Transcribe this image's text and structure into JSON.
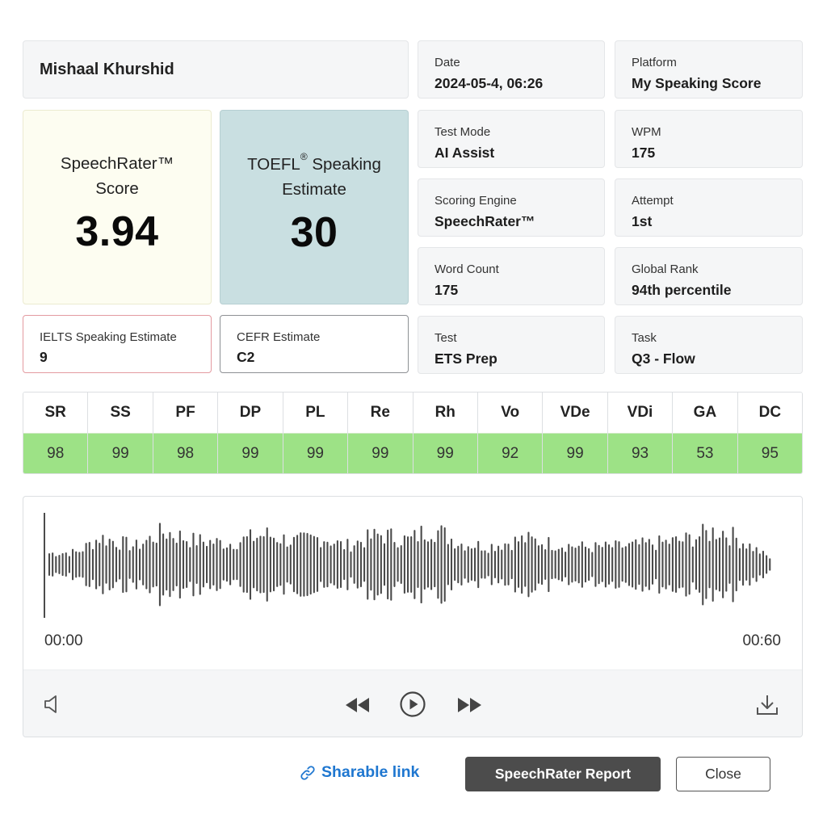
{
  "student": {
    "name": "Mishaal Khurshid"
  },
  "info": {
    "date": {
      "label": "Date",
      "value": "2024-05-4, 06:26"
    },
    "platform": {
      "label": "Platform",
      "value": "My Speaking Score"
    },
    "test_mode": {
      "label": "Test Mode",
      "value": "AI Assist"
    },
    "wpm": {
      "label": "WPM",
      "value": "175"
    },
    "scoring_engine": {
      "label": "Scoring Engine",
      "value": "SpeechRater™"
    },
    "attempt": {
      "label": "Attempt",
      "value": "1st"
    },
    "word_count": {
      "label": "Word Count",
      "value": "175"
    },
    "global_rank": {
      "label": "Global Rank",
      "value": "94th percentile"
    },
    "test": {
      "label": "Test",
      "value": "ETS Prep"
    },
    "task": {
      "label": "Task",
      "value": "Q3 - Flow"
    }
  },
  "scores": {
    "speechrater": {
      "title_line1": "SpeechRater™",
      "title_line2": "Score",
      "value": "3.94"
    },
    "toefl": {
      "title_line1_a": "TOEFL",
      "title_line1_sup": "®",
      "title_line1_b": " Speaking",
      "title_line2": "Estimate",
      "value": "30"
    },
    "ielts": {
      "label": "IELTS Speaking Estimate",
      "value": "9",
      "border_color": "#e39aa0"
    },
    "cefr": {
      "label": "CEFR Estimate",
      "value": "C2"
    }
  },
  "metrics": [
    {
      "abbr": "SR",
      "value": "98"
    },
    {
      "abbr": "SS",
      "value": "99"
    },
    {
      "abbr": "PF",
      "value": "98"
    },
    {
      "abbr": "DP",
      "value": "99"
    },
    {
      "abbr": "PL",
      "value": "99"
    },
    {
      "abbr": "Re",
      "value": "99"
    },
    {
      "abbr": "Rh",
      "value": "99"
    },
    {
      "abbr": "Vo",
      "value": "92"
    },
    {
      "abbr": "VDe",
      "value": "99"
    },
    {
      "abbr": "VDi",
      "value": "93"
    },
    {
      "abbr": "GA",
      "value": "53"
    },
    {
      "abbr": "DC",
      "value": "95"
    }
  ],
  "player": {
    "time_start": "00:00",
    "time_end": "00:60",
    "playback_position": 0,
    "icons": {
      "volume": "speaker-icon",
      "rewind": "rewind-icon",
      "play": "play-circle-icon",
      "forward": "fast-forward-icon",
      "download": "download-icon"
    }
  },
  "actions": {
    "share_label": "Sharable link",
    "report_label": "SpeechRater Report",
    "close_label": "Close"
  },
  "colors": {
    "metric_value_bg": "#9de286",
    "toefl_bg": "#c9dfe1",
    "speechrater_bg": "#fdfdf1",
    "link": "#1f77d0",
    "primary_button": "#4c4c4c"
  }
}
